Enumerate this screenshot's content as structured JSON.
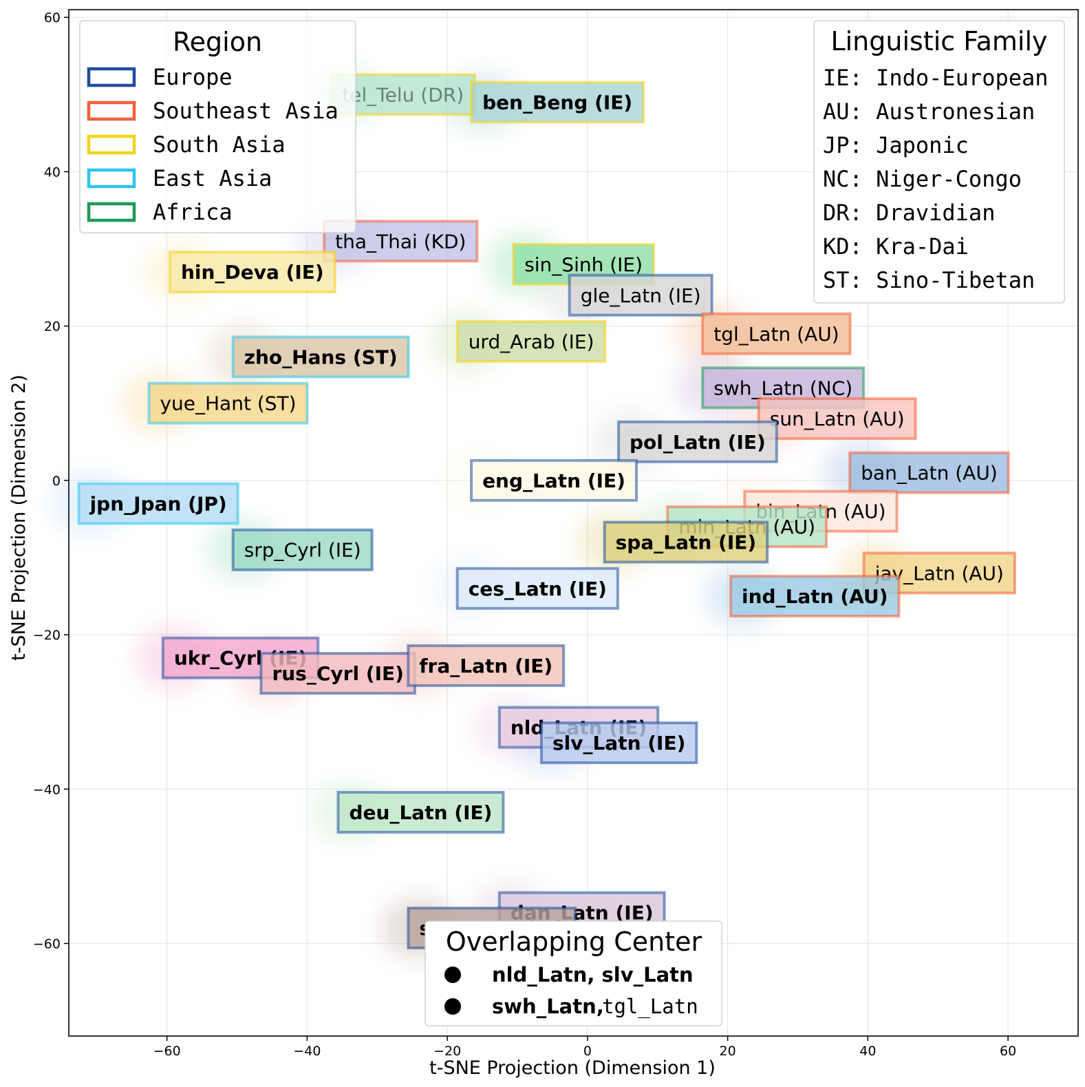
{
  "chart_data": {
    "type": "scatter",
    "subtype": "t-SNE projection with labeled language clusters",
    "xlabel": "t-SNE Projection (Dimension 1)",
    "ylabel": "t-SNE Projection (Dimension 2)",
    "xlim": [
      -74,
      70
    ],
    "ylim": [
      -72,
      61
    ],
    "grid": true,
    "x_ticks": [
      -60,
      -40,
      -20,
      0,
      20,
      40,
      60
    ],
    "y_ticks": [
      -60,
      -40,
      -20,
      0,
      20,
      40,
      60
    ],
    "x_tick_labels": [
      "−60",
      "−40",
      "−20",
      "0",
      "20",
      "40",
      "60"
    ],
    "y_tick_labels": [
      "−60",
      "−40",
      "−20",
      "0",
      "20",
      "40",
      "60"
    ],
    "region_colors": {
      "Europe": "#1f4e9c",
      "Southeast Asia": "#f4603a",
      "South Asia": "#f5d21a",
      "East Asia": "#2dc6f0",
      "Africa": "#1f9a55"
    },
    "clusters": [
      {
        "name": "tel_Telu (DR)",
        "region": "South Asia",
        "x": -35,
        "y": 50,
        "fill": "#b4e4d0",
        "bold": false,
        "text_alpha": 0.45
      },
      {
        "name": "ben_Beng (IE)",
        "region": "South Asia",
        "x": -15,
        "y": 49,
        "fill": "#a9d3d3",
        "bold": true
      },
      {
        "name": "tha_Thai (KD)",
        "region": "Southeast Asia",
        "x": -36,
        "y": 31,
        "fill": "#c3c3e6",
        "bold": false
      },
      {
        "name": "hin_Deva (IE)",
        "region": "South Asia",
        "x": -58,
        "y": 27,
        "fill": "#f7e9a6",
        "bold": true
      },
      {
        "name": "sin_Sinh (IE)",
        "region": "South Asia",
        "x": -9,
        "y": 28,
        "fill": "#8fe0a6",
        "bold": false
      },
      {
        "name": "gle_Latn (IE)",
        "region": "Europe",
        "x": -1,
        "y": 24,
        "fill": "#d4d4d4",
        "bold": false
      },
      {
        "name": "tgl_Latn (AU)",
        "region": "Southeast Asia",
        "x": 18,
        "y": 19,
        "fill": "#f2bd96",
        "bold": false
      },
      {
        "name": "urd_Arab (IE)",
        "region": "South Asia",
        "x": -17,
        "y": 18,
        "fill": "#c9dfa6",
        "bold": false
      },
      {
        "name": "zho_Hans (ST)",
        "region": "East Asia",
        "x": -49,
        "y": 16,
        "fill": "#d9c6a6",
        "bold": true
      },
      {
        "name": "swh_Latn (NC)",
        "region": "Africa",
        "x": 18,
        "y": 12,
        "fill": "#c4b4d9",
        "bold": false
      },
      {
        "name": "yue_Hant (ST)",
        "region": "East Asia",
        "x": -61,
        "y": 10,
        "fill": "#f5d68a",
        "bold": false
      },
      {
        "name": "sun_Latn (AU)",
        "region": "Southeast Asia",
        "x": 26,
        "y": 8,
        "fill": "#f6c3be",
        "bold": false
      },
      {
        "name": "pol_Latn (IE)",
        "region": "Europe",
        "x": 6,
        "y": 5,
        "fill": "#d6d6d6",
        "bold": true
      },
      {
        "name": "ban_Latn (AU)",
        "region": "Southeast Asia",
        "x": 39,
        "y": 1,
        "fill": "#9cbce0",
        "bold": false
      },
      {
        "name": "eng_Latn (IE)",
        "region": "Europe",
        "x": -15,
        "y": 0,
        "fill": "#fff8e6",
        "bold": true
      },
      {
        "name": "jpn_Jpan (JP)",
        "region": "East Asia",
        "x": -71,
        "y": -3,
        "fill": "#b3dcf5",
        "bold": true
      },
      {
        "name": "bin_Latn (AU)",
        "region": "Southeast Asia",
        "x": 24,
        "y": -4,
        "fill": "#fbe7dc",
        "bold": false
      },
      {
        "name": "min_Latn (AU)",
        "region": "Southeast Asia",
        "x": 13,
        "y": -6,
        "fill": "#b5e6c7",
        "bold": false
      },
      {
        "name": "spa_Latn (IE)",
        "region": "Europe",
        "x": 4,
        "y": -8,
        "fill": "#ddd07a",
        "bold": true
      },
      {
        "name": "srp_Cyrl (IE)",
        "region": "Europe",
        "x": -49,
        "y": -9,
        "fill": "#9adac3",
        "bold": false
      },
      {
        "name": "jav_Latn (AU)",
        "region": "Southeast Asia",
        "x": 41,
        "y": -12,
        "fill": "#f3d38a",
        "bold": false
      },
      {
        "name": "ces_Latn (IE)",
        "region": "Europe",
        "x": -17,
        "y": -14,
        "fill": "#dbeaf7",
        "bold": true
      },
      {
        "name": "ind_Latn (AU)",
        "region": "Southeast Asia",
        "x": 22,
        "y": -15,
        "fill": "#9ac9e3",
        "bold": true
      },
      {
        "name": "ukr_Cyrl (IE)",
        "region": "Europe",
        "x": -59,
        "y": -23,
        "fill": "#f3a6cd",
        "bold": true
      },
      {
        "name": "rus_Cyrl (IE)",
        "region": "Europe",
        "x": -45,
        "y": -25,
        "fill": "#f2b9bd",
        "bold": true
      },
      {
        "name": "fra_Latn (IE)",
        "region": "Europe",
        "x": -24,
        "y": -24,
        "fill": "#f2c2b6",
        "bold": true
      },
      {
        "name": "nld_Latn (IE)",
        "region": "Europe",
        "x": -11,
        "y": -32,
        "fill": "#e7c9df",
        "bold": true
      },
      {
        "name": "slv_Latn (IE)",
        "region": "Europe",
        "x": -5,
        "y": -34,
        "fill": "#b7c9ef",
        "bold": true
      },
      {
        "name": "deu_Latn (IE)",
        "region": "Europe",
        "x": -34,
        "y": -43,
        "fill": "#bde6c6",
        "bold": true
      },
      {
        "name": "dan_Latn (IE)",
        "region": "Europe",
        "x": -11,
        "y": -56,
        "fill": "#d9c6d9",
        "bold": true
      },
      {
        "name": "swe_Latn (IE)",
        "region": "Europe",
        "x": -24,
        "y": -58,
        "fill": "#b7a29b",
        "bold": true
      }
    ],
    "legend_region": {
      "title": "Region",
      "position": "top-left",
      "entries": [
        "Europe",
        "Southeast Asia",
        "South Asia",
        "East Asia",
        "Africa"
      ]
    },
    "legend_family": {
      "title": "Linguistic Family",
      "position": "top-right",
      "entries": [
        "IE: Indo-European",
        "AU: Austronesian",
        "JP: Japonic",
        "NC: Niger-Congo",
        "DR: Dravidian",
        "KD: Kra-Dai",
        "ST: Sino-Tibetan"
      ]
    },
    "legend_overlap": {
      "title": "Overlapping Center",
      "position": "bottom-center",
      "entries": [
        {
          "bold": "nld_Latn, slv_Latn",
          "normal": ""
        },
        {
          "bold": "swh_Latn,",
          "normal": "tgl_Latn"
        }
      ]
    }
  }
}
